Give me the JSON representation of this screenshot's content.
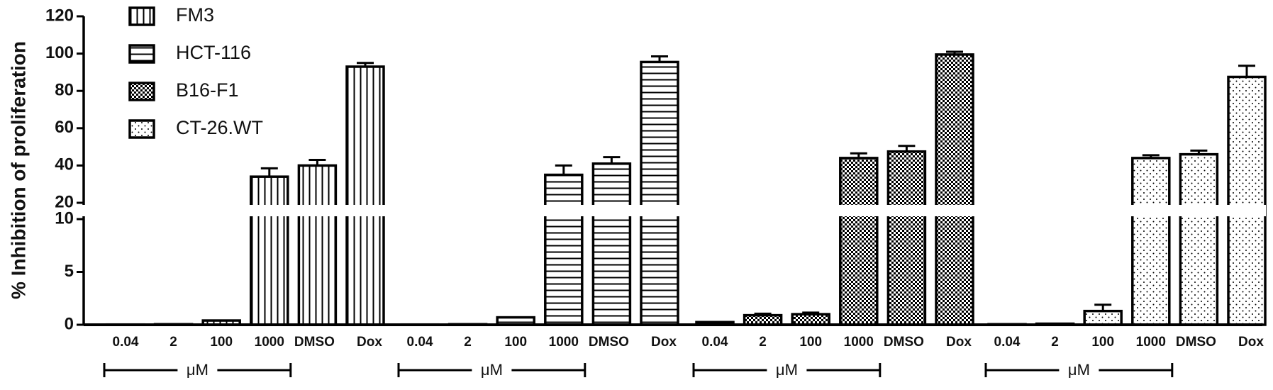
{
  "chart_data": {
    "type": "bar",
    "y_label": "% Inhibition of proliferation",
    "categories": [
      "0.04",
      "2",
      "100",
      "1000",
      "DMSO",
      "Dox"
    ],
    "unit_label": "μM",
    "ylim": [
      0,
      120
    ],
    "y_break": [
      10,
      20
    ],
    "yticks": [
      0,
      5,
      10,
      20,
      40,
      60,
      80,
      100,
      120
    ],
    "series": [
      {
        "name": "FM3",
        "color": "#000000",
        "pattern": "vertical-lines",
        "values": [
          0.02,
          0.05,
          0.4,
          34,
          40,
          93
        ],
        "errors": [
          null,
          null,
          null,
          4.5,
          3,
          2
        ]
      },
      {
        "name": "HCT-116",
        "color": "#000000",
        "pattern": "horizontal-lines",
        "values": [
          0.02,
          0.05,
          0.7,
          35,
          41,
          95.5
        ],
        "errors": [
          null,
          null,
          null,
          5,
          3.5,
          3
        ]
      },
      {
        "name": "B16-F1",
        "color": "#000000",
        "pattern": "checker",
        "values": [
          0.25,
          0.9,
          1.0,
          44,
          47.5,
          99.5
        ],
        "errors": [
          null,
          0.15,
          0.15,
          2.5,
          3,
          1.5
        ]
      },
      {
        "name": "CT-26.WT",
        "color": "#000000",
        "pattern": "dots",
        "values": [
          0.05,
          0.1,
          1.3,
          44,
          46,
          87.5
        ],
        "errors": [
          null,
          null,
          0.6,
          1.5,
          2,
          6
        ]
      }
    ]
  }
}
